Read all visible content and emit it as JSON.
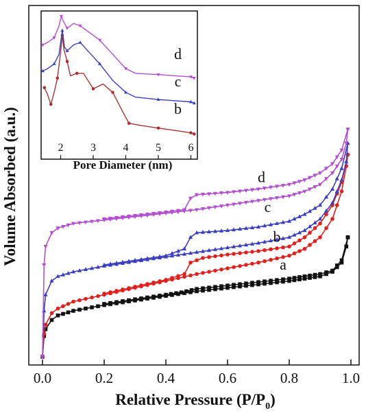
{
  "chart_data": [
    {
      "type": "line",
      "title": "",
      "xlabel_main": "Relative Pressure (P/P",
      "xlabel_sub": "0",
      "xlabel_end": ")",
      "ylabel": "Volume Absorbed (a.u.)",
      "xlim": [
        0.0,
        1.0
      ],
      "ylim": [
        0,
        100
      ],
      "xticks": [
        "0.0",
        "0.2",
        "0.4",
        "0.6",
        "0.8",
        "1.0"
      ],
      "y_tick_labels_shown": false,
      "grid": false,
      "series": [
        {
          "name": "a",
          "color": "#111111",
          "marker": "square",
          "adsorption": [
            [
              0.0,
              0
            ],
            [
              0.005,
              9
            ],
            [
              0.01,
              12
            ],
            [
              0.03,
              16
            ],
            [
              0.05,
              18
            ],
            [
              0.1,
              20
            ],
            [
              0.2,
              22.5
            ],
            [
              0.3,
              24.5
            ],
            [
              0.4,
              26.5
            ],
            [
              0.5,
              28.5
            ],
            [
              0.6,
              30
            ],
            [
              0.7,
              31.5
            ],
            [
              0.8,
              33
            ],
            [
              0.85,
              34
            ],
            [
              0.9,
              35
            ],
            [
              0.94,
              37
            ],
            [
              0.97,
              41
            ],
            [
              0.985,
              48
            ],
            [
              0.99,
              52
            ]
          ],
          "desorption": [
            [
              0.99,
              52
            ],
            [
              0.97,
              42
            ],
            [
              0.94,
              37.5
            ],
            [
              0.9,
              36
            ],
            [
              0.85,
              35
            ],
            [
              0.8,
              34
            ],
            [
              0.7,
              32.5
            ],
            [
              0.6,
              31
            ],
            [
              0.5,
              29.5
            ],
            [
              0.45,
              28
            ],
            [
              0.4,
              27
            ],
            [
              0.3,
              25
            ],
            [
              0.2,
              23
            ]
          ]
        },
        {
          "name": "b",
          "color": "#e0201c",
          "marker": "circle",
          "adsorption": [
            [
              0.0,
              0
            ],
            [
              0.005,
              10
            ],
            [
              0.01,
              14
            ],
            [
              0.03,
              19
            ],
            [
              0.05,
              21
            ],
            [
              0.1,
              24
            ],
            [
              0.2,
              27
            ],
            [
              0.3,
              30
            ],
            [
              0.4,
              33
            ],
            [
              0.5,
              36
            ],
            [
              0.6,
              38.5
            ],
            [
              0.7,
              41
            ],
            [
              0.8,
              44
            ],
            [
              0.85,
              47
            ],
            [
              0.9,
              52
            ],
            [
              0.94,
              60
            ],
            [
              0.97,
              72
            ],
            [
              0.985,
              83
            ],
            [
              0.99,
              88
            ]
          ],
          "desorption": [
            [
              0.99,
              88
            ],
            [
              0.97,
              76
            ],
            [
              0.94,
              66
            ],
            [
              0.9,
              58
            ],
            [
              0.85,
              52
            ],
            [
              0.8,
              48
            ],
            [
              0.7,
              46
            ],
            [
              0.6,
              44.5
            ],
            [
              0.52,
              43
            ],
            [
              0.48,
              41
            ],
            [
              0.46,
              36
            ],
            [
              0.4,
              33.5
            ],
            [
              0.3,
              30.5
            ],
            [
              0.2,
              27.5
            ]
          ]
        },
        {
          "name": "c",
          "color": "#3b3fbf",
          "marker": "triangle-up",
          "adsorption": [
            [
              0.0,
              0
            ],
            [
              0.005,
              20
            ],
            [
              0.01,
              27
            ],
            [
              0.03,
              33
            ],
            [
              0.05,
              35
            ],
            [
              0.1,
              37
            ],
            [
              0.2,
              39.5
            ],
            [
              0.3,
              41.5
            ],
            [
              0.4,
              43.5
            ],
            [
              0.5,
              45.5
            ],
            [
              0.6,
              47.5
            ],
            [
              0.7,
              49.5
            ],
            [
              0.8,
              52
            ],
            [
              0.85,
              55
            ],
            [
              0.9,
              60
            ],
            [
              0.94,
              67
            ],
            [
              0.97,
              77
            ],
            [
              0.985,
              85
            ],
            [
              0.99,
              93
            ]
          ],
          "desorption": [
            [
              0.99,
              93
            ],
            [
              0.97,
              82
            ],
            [
              0.94,
              73
            ],
            [
              0.9,
              66
            ],
            [
              0.85,
              62
            ],
            [
              0.8,
              59
            ],
            [
              0.7,
              56.5
            ],
            [
              0.6,
              55
            ],
            [
              0.5,
              54
            ],
            [
              0.48,
              52
            ],
            [
              0.46,
              47
            ],
            [
              0.4,
              44
            ],
            [
              0.3,
              42
            ],
            [
              0.2,
              40
            ]
          ]
        },
        {
          "name": "d",
          "color": "#b24fcf",
          "marker": "triangle-down",
          "adsorption": [
            [
              0.0,
              0
            ],
            [
              0.005,
              40
            ],
            [
              0.01,
              48
            ],
            [
              0.03,
              54
            ],
            [
              0.05,
              56
            ],
            [
              0.1,
              58
            ],
            [
              0.2,
              59.5
            ],
            [
              0.3,
              61
            ],
            [
              0.4,
              62.5
            ],
            [
              0.5,
              64
            ],
            [
              0.6,
              66
            ],
            [
              0.7,
              68
            ],
            [
              0.8,
              70
            ],
            [
              0.85,
              72
            ],
            [
              0.9,
              75
            ],
            [
              0.94,
              80
            ],
            [
              0.97,
              86
            ],
            [
              0.985,
              93
            ],
            [
              0.99,
              99
            ]
          ],
          "desorption": [
            [
              0.99,
              99
            ],
            [
              0.97,
              90
            ],
            [
              0.94,
              84
            ],
            [
              0.9,
              80
            ],
            [
              0.85,
              77
            ],
            [
              0.8,
              75
            ],
            [
              0.7,
              73
            ],
            [
              0.6,
              71.5
            ],
            [
              0.5,
              70.5
            ],
            [
              0.48,
              69
            ],
            [
              0.46,
              64
            ],
            [
              0.4,
              63
            ],
            [
              0.3,
              61.5
            ],
            [
              0.2,
              60
            ]
          ]
        }
      ],
      "curve_labels": [
        {
          "text": "a",
          "series": "a"
        },
        {
          "text": "b",
          "series": "b"
        },
        {
          "text": "c",
          "series": "c"
        },
        {
          "text": "d",
          "series": "d"
        }
      ]
    },
    {
      "type": "line",
      "title": "",
      "xlabel": "Pore Diameter (nm)",
      "ylabel": "",
      "xlim": [
        1.4,
        6.2
      ],
      "ylim": [
        0,
        100
      ],
      "xticks": [
        "2",
        "3",
        "4",
        "5",
        "6"
      ],
      "y_tick_labels_shown": false,
      "grid": false,
      "series": [
        {
          "name": "b",
          "color": "#a83232",
          "marker": "circle",
          "points": [
            [
              1.5,
              44
            ],
            [
              1.6,
              38
            ],
            [
              1.7,
              30
            ],
            [
              1.8,
              40
            ],
            [
              1.9,
              52
            ],
            [
              2.0,
              74
            ],
            [
              2.05,
              88
            ],
            [
              2.1,
              76
            ],
            [
              2.2,
              66
            ],
            [
              2.3,
              54
            ],
            [
              2.5,
              56
            ],
            [
              2.7,
              56
            ],
            [
              3.0,
              43
            ],
            [
              3.3,
              47
            ],
            [
              3.6,
              40
            ],
            [
              3.9,
              24
            ],
            [
              4.1,
              14
            ],
            [
              4.5,
              12
            ],
            [
              5.0,
              10
            ],
            [
              5.5,
              8
            ],
            [
              6.0,
              6
            ],
            [
              6.1,
              5
            ]
          ]
        },
        {
          "name": "c",
          "color": "#3b3fbf",
          "marker": "triangle-up",
          "points": [
            [
              1.45,
              58
            ],
            [
              1.6,
              60
            ],
            [
              1.8,
              64
            ],
            [
              1.95,
              72
            ],
            [
              2.05,
              92
            ],
            [
              2.12,
              78
            ],
            [
              2.2,
              75
            ],
            [
              2.4,
              80
            ],
            [
              2.6,
              82
            ],
            [
              2.8,
              76
            ],
            [
              3.2,
              64
            ],
            [
              3.6,
              50
            ],
            [
              4.0,
              40
            ],
            [
              4.3,
              36
            ],
            [
              5.0,
              34
            ],
            [
              5.5,
              33
            ],
            [
              6.0,
              32
            ],
            [
              6.1,
              31
            ]
          ]
        },
        {
          "name": "d",
          "color": "#b24fcf",
          "marker": "triangle-down",
          "points": [
            [
              1.45,
              80
            ],
            [
              1.6,
              82
            ],
            [
              1.8,
              86
            ],
            [
              1.95,
              96
            ],
            [
              2.02,
              104
            ],
            [
              2.08,
              100
            ],
            [
              2.2,
              94
            ],
            [
              2.4,
              98
            ],
            [
              2.6,
              96
            ],
            [
              2.8,
              92
            ],
            [
              3.2,
              84
            ],
            [
              3.6,
              72
            ],
            [
              4.0,
              60
            ],
            [
              4.3,
              56
            ],
            [
              5.0,
              55
            ],
            [
              5.5,
              54
            ],
            [
              6.0,
              53
            ],
            [
              6.1,
              52
            ]
          ]
        }
      ],
      "curve_labels": [
        {
          "text": "d",
          "series": "d"
        },
        {
          "text": "c",
          "series": "c"
        },
        {
          "text": "b",
          "series": "b"
        }
      ]
    }
  ]
}
